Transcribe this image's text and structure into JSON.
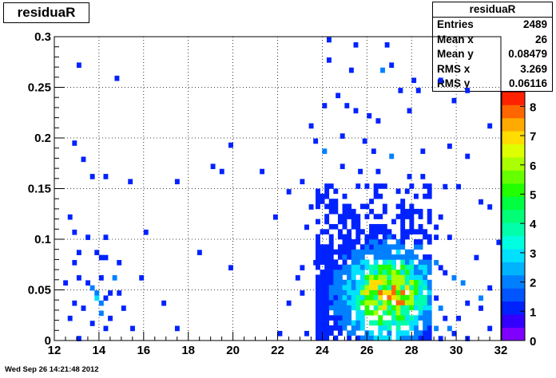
{
  "timestamp": "Wed Sep 26 14:21:48 2012",
  "chart_data": {
    "type": "heatmap",
    "title": "residuaR",
    "xlabel": "",
    "ylabel": "",
    "xlim": [
      12,
      32
    ],
    "ylim": [
      0,
      0.3
    ],
    "zlim": [
      0,
      8.5
    ],
    "bins": {
      "x_width": 0.2,
      "y_width": 0.005
    },
    "grid": true,
    "xticks": [
      "12",
      "14",
      "16",
      "18",
      "20",
      "22",
      "24",
      "26",
      "28",
      "30",
      "32"
    ],
    "yticks": [
      "0",
      "0.05",
      "0.1",
      "0.15",
      "0.2",
      "0.25",
      "0.3"
    ],
    "palette_ticks": [
      "0",
      "1",
      "2",
      "3",
      "4",
      "5",
      "6",
      "7",
      "8"
    ],
    "stats": {
      "title": "residuaR",
      "rows": [
        {
          "label": "Entries",
          "value": "2489"
        },
        {
          "label": "Mean x",
          "value": "26"
        },
        {
          "label": "Mean y",
          "value": "0.08479"
        },
        {
          "label": "RMS x",
          "value": "3.269"
        },
        {
          "label": "RMS y",
          "value": "0.06116"
        }
      ]
    },
    "cells": [
      [
        13.1,
        0.272,
        1
      ],
      [
        14.8,
        0.259,
        1
      ],
      [
        12.9,
        0.195,
        1
      ],
      [
        13.3,
        0.179,
        1
      ],
      [
        13.7,
        0.162,
        1
      ],
      [
        14.3,
        0.162,
        1
      ],
      [
        15.4,
        0.157,
        1
      ],
      [
        17.5,
        0.157,
        1
      ],
      [
        19.9,
        0.193,
        1
      ],
      [
        19.1,
        0.172,
        1
      ],
      [
        19.5,
        0.167,
        1
      ],
      [
        21.3,
        0.167,
        1
      ],
      [
        22.5,
        0.147,
        1
      ],
      [
        12.7,
        0.122,
        1
      ],
      [
        12.9,
        0.107,
        1
      ],
      [
        13.5,
        0.102,
        1
      ],
      [
        14.3,
        0.102,
        1
      ],
      [
        16.1,
        0.107,
        1
      ],
      [
        18.5,
        0.087,
        1
      ],
      [
        19.9,
        0.072,
        1
      ],
      [
        13.1,
        0.087,
        1
      ],
      [
        13.9,
        0.087,
        1
      ],
      [
        14.1,
        0.082,
        1
      ],
      [
        14.3,
        0.082,
        1
      ],
      [
        12.9,
        0.077,
        1
      ],
      [
        14.9,
        0.077,
        1
      ],
      [
        13.1,
        0.062,
        1
      ],
      [
        13.5,
        0.057,
        1
      ],
      [
        14.1,
        0.062,
        1
      ],
      [
        14.7,
        0.062,
        2
      ],
      [
        15.9,
        0.062,
        1
      ],
      [
        12.5,
        0.057,
        1
      ],
      [
        13.7,
        0.052,
        2
      ],
      [
        13.9,
        0.047,
        2
      ],
      [
        14.5,
        0.047,
        1
      ],
      [
        14.9,
        0.047,
        1
      ],
      [
        13.9,
        0.042,
        3
      ],
      [
        14.1,
        0.037,
        2
      ],
      [
        14.3,
        0.042,
        1
      ],
      [
        12.9,
        0.037,
        1
      ],
      [
        13.3,
        0.032,
        1
      ],
      [
        15.1,
        0.032,
        1
      ],
      [
        14.1,
        0.027,
        2
      ],
      [
        14.5,
        0.022,
        1
      ],
      [
        13.7,
        0.017,
        1
      ],
      [
        14.3,
        0.012,
        1
      ],
      [
        15.5,
        0.012,
        1
      ],
      [
        17.5,
        0.012,
        1
      ],
      [
        12.7,
        0.022,
        1
      ],
      [
        16.9,
        0.037,
        1
      ],
      [
        13.1,
        0.002,
        1
      ],
      [
        21.9,
        0.122,
        1
      ],
      [
        22.5,
        0.037,
        1
      ],
      [
        22.1,
        0.007,
        1
      ],
      [
        23.1,
        0.072,
        1
      ],
      [
        23.7,
        0.077,
        1
      ],
      [
        23.1,
        0.047,
        1
      ],
      [
        22.9,
        0.062,
        1
      ],
      [
        23.3,
        0.007,
        1
      ],
      [
        23.5,
        0.132,
        1
      ],
      [
        23.3,
        0.112,
        1
      ],
      [
        23.1,
        0.157,
        1
      ],
      [
        24.3,
        0.297,
        1
      ],
      [
        24.3,
        0.277,
        1
      ],
      [
        25.5,
        0.292,
        1
      ],
      [
        26.9,
        0.292,
        1
      ],
      [
        25.3,
        0.267,
        1
      ],
      [
        26.7,
        0.267,
        2
      ],
      [
        27.1,
        0.272,
        1
      ],
      [
        28.1,
        0.257,
        1
      ],
      [
        28.3,
        0.247,
        1
      ],
      [
        27.5,
        0.247,
        1
      ],
      [
        24.7,
        0.242,
        1
      ],
      [
        25.1,
        0.232,
        1
      ],
      [
        24.1,
        0.232,
        1
      ],
      [
        27.9,
        0.227,
        1
      ],
      [
        25.5,
        0.227,
        1
      ],
      [
        26.1,
        0.222,
        1
      ],
      [
        26.5,
        0.217,
        1
      ],
      [
        24.9,
        0.202,
        1
      ],
      [
        25.9,
        0.197,
        1
      ],
      [
        26.3,
        0.187,
        1
      ],
      [
        27.1,
        0.182,
        2
      ],
      [
        28.5,
        0.187,
        1
      ],
      [
        29.3,
        0.257,
        1
      ],
      [
        29.9,
        0.237,
        1
      ],
      [
        30.5,
        0.247,
        1
      ],
      [
        29.7,
        0.192,
        1
      ],
      [
        30.5,
        0.182,
        1
      ],
      [
        31.5,
        0.212,
        1
      ],
      [
        23.5,
        0.212,
        1
      ],
      [
        23.7,
        0.197,
        1
      ],
      [
        24.1,
        0.187,
        2
      ],
      [
        24.9,
        0.172,
        1
      ],
      [
        25.7,
        0.167,
        1
      ],
      [
        26.5,
        0.167,
        1
      ],
      [
        27.9,
        0.162,
        1
      ],
      [
        28.5,
        0.162,
        1
      ],
      [
        29.5,
        0.152,
        1
      ],
      [
        30.1,
        0.152,
        1
      ],
      [
        31.1,
        0.137,
        1
      ],
      [
        31.5,
        0.132,
        1
      ],
      [
        31.9,
        0.097,
        1
      ],
      [
        30.9,
        0.082,
        1
      ],
      [
        31.5,
        0.052,
        1
      ],
      [
        31.1,
        0.042,
        2
      ],
      [
        31.1,
        0.032,
        1
      ],
      [
        31.5,
        0.012,
        1
      ],
      [
        29.9,
        0.062,
        2
      ],
      [
        30.3,
        0.057,
        2
      ],
      [
        30.5,
        0.037,
        1
      ],
      [
        30.1,
        0.022,
        1
      ],
      [
        29.7,
        0.012,
        2
      ],
      [
        29.9,
        0.007,
        1
      ],
      [
        30.5,
        0.002,
        1
      ]
    ],
    "dense_region": {
      "x_range": [
        23.8,
        28.8
      ],
      "y_range": [
        0.0,
        0.155
      ],
      "peak": [
        27.0,
        0.045
      ],
      "peak_value": 8
    }
  }
}
